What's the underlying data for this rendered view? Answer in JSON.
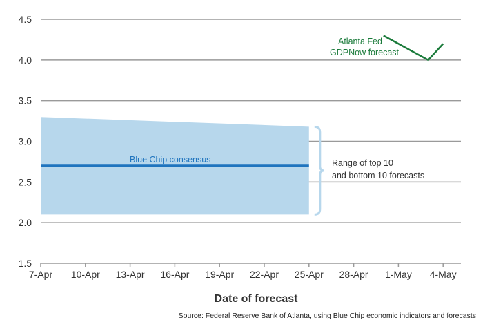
{
  "chart_data": {
    "type": "line",
    "xlabel": "Date of forecast",
    "ylabel": "",
    "ylim": [
      1.5,
      4.5
    ],
    "yticks": [
      "1.5",
      "2.0",
      "2.5",
      "3.0",
      "3.5",
      "4.0",
      "4.5"
    ],
    "xticks": [
      "7-Apr",
      "10-Apr",
      "13-Apr",
      "16-Apr",
      "19-Apr",
      "22-Apr",
      "25-Apr",
      "28-Apr",
      "1-May",
      "4-May"
    ],
    "grid": true,
    "range_band": {
      "label_line1": "Range of top 10",
      "label_line2": "and bottom 10 forecasts",
      "x_start": "7-Apr",
      "x_end": "25-Apr",
      "upper": [
        3.3,
        3.18
      ],
      "lower": [
        2.1,
        2.1
      ],
      "color": "#b7d7ec"
    },
    "series": [
      {
        "name": "Blue Chip consensus",
        "color": "#1f74be",
        "points": [
          [
            "7-Apr",
            2.7
          ],
          [
            "25-Apr",
            2.7
          ]
        ]
      },
      {
        "name_line1": "Atlanta Fed",
        "name_line2": "GDPNow forecast",
        "color": "#1a7a3a",
        "points": [
          [
            "30-Apr",
            4.3
          ],
          [
            "3-May",
            4.0
          ],
          [
            "4-May",
            4.2
          ]
        ]
      }
    ]
  },
  "source": "Source: Federal Reserve Bank of Atlanta, using Blue Chip economic indicators and forecasts"
}
